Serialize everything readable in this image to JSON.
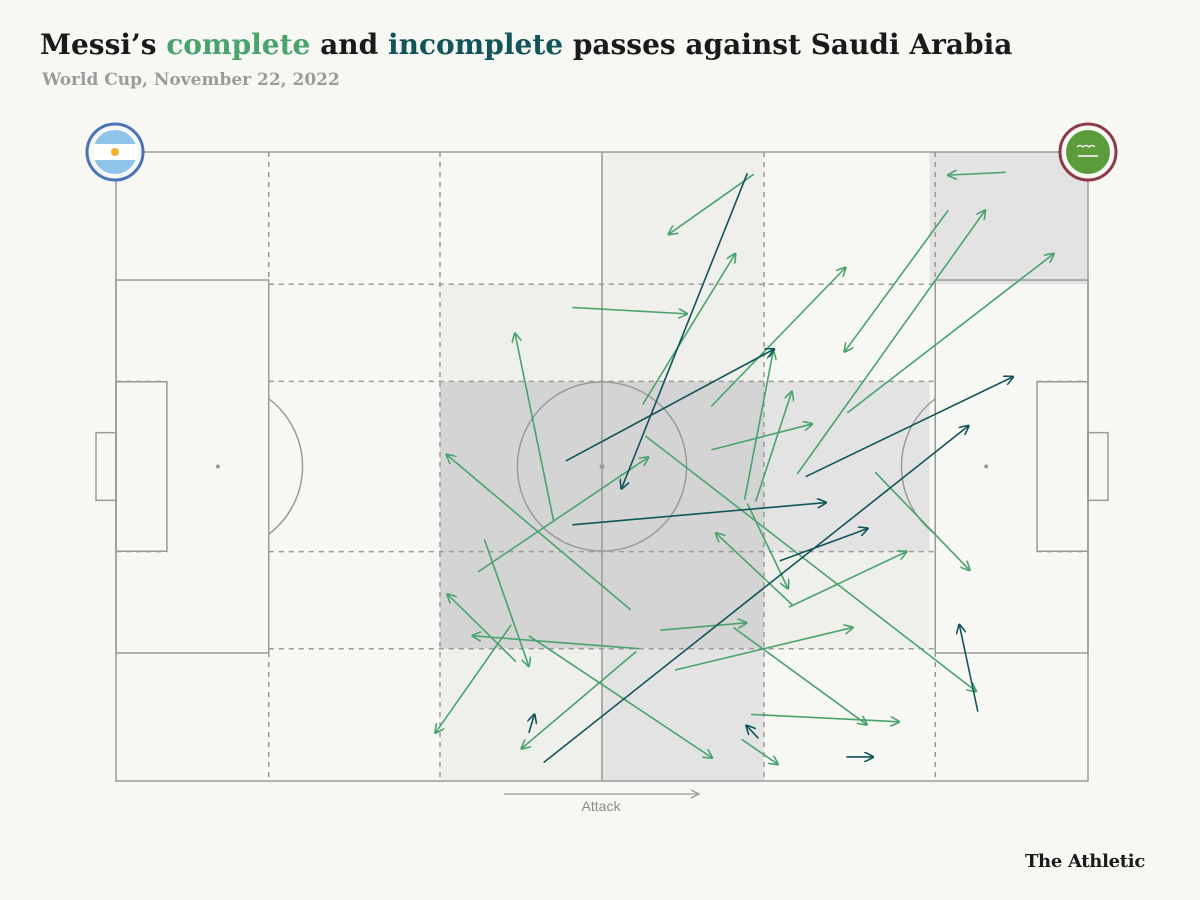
{
  "header": {
    "title_pre": "Messi’s ",
    "title_complete": "complete",
    "title_mid": " and ",
    "title_incomplete": "incomplete",
    "title_post": " passes against Saudi Arabia",
    "subtitle": "World Cup, November 22, 2022"
  },
  "attack_label": "Attack",
  "brand": "The Athletic",
  "teams": {
    "home": {
      "flag": "argentina-flag-icon",
      "ring_color": "#4a74b5"
    },
    "away": {
      "flag": "saudi-arabia-flag-icon",
      "ring_color": "#8b3a47"
    }
  },
  "colors": {
    "complete": "#4aa36d",
    "incomplete": "#11555a",
    "zone_dark": "#d4d4d4",
    "zone_mid": "#e3e3e3",
    "zone_light": "#efefeb",
    "lines": "#9a9a9a"
  },
  "chart_data": {
    "type": "pass-map",
    "pitch": {
      "length": 105,
      "width": 68
    },
    "attack_direction": "left-to-right",
    "zone_shading": [
      {
        "x0": 52.5,
        "x1": 70,
        "y0": 0,
        "y1": 14.3,
        "level": "light"
      },
      {
        "x0": 87.9,
        "x1": 105,
        "y0": 0,
        "y1": 14.3,
        "level": "mid"
      },
      {
        "x0": 35,
        "x1": 52.5,
        "y0": 14.3,
        "y1": 24.8,
        "level": "light"
      },
      {
        "x0": 52.5,
        "x1": 70,
        "y0": 14.3,
        "y1": 24.8,
        "level": "light"
      },
      {
        "x0": 35,
        "x1": 52.5,
        "y0": 24.8,
        "y1": 43.2,
        "level": "dark"
      },
      {
        "x0": 52.5,
        "x1": 70,
        "y0": 24.8,
        "y1": 43.2,
        "level": "dark"
      },
      {
        "x0": 70,
        "x1": 87.9,
        "y0": 24.8,
        "y1": 43.2,
        "level": "mid"
      },
      {
        "x0": 35,
        "x1": 52.5,
        "y0": 43.2,
        "y1": 53.7,
        "level": "dark"
      },
      {
        "x0": 52.5,
        "x1": 70,
        "y0": 43.2,
        "y1": 53.7,
        "level": "dark"
      },
      {
        "x0": 70,
        "x1": 87.9,
        "y0": 43.2,
        "y1": 53.7,
        "level": "light"
      },
      {
        "x0": 35,
        "x1": 52.5,
        "y0": 53.7,
        "y1": 68,
        "level": "light"
      },
      {
        "x0": 52.5,
        "x1": 70,
        "y0": 53.7,
        "y1": 68,
        "level": "mid"
      }
    ],
    "passes": [
      {
        "x0": 68.9,
        "y0": 2.4,
        "x1": 59.7,
        "y1": 8.9,
        "outcome": "complete"
      },
      {
        "x0": 96.1,
        "y0": 2.2,
        "x1": 89.9,
        "y1": 2.5,
        "outcome": "complete"
      },
      {
        "x0": 89.9,
        "y0": 6.3,
        "x1": 78.7,
        "y1": 21.6,
        "outcome": "complete"
      },
      {
        "x0": 73.6,
        "y0": 34.8,
        "x1": 93.9,
        "y1": 6.3,
        "outcome": "complete"
      },
      {
        "x0": 79.0,
        "y0": 28.2,
        "x1": 101.3,
        "y1": 11.0,
        "outcome": "complete"
      },
      {
        "x0": 49.3,
        "y0": 16.8,
        "x1": 61.7,
        "y1": 17.5,
        "outcome": "complete"
      },
      {
        "x0": 56.9,
        "y0": 27.3,
        "x1": 66.9,
        "y1": 11.0,
        "outcome": "complete"
      },
      {
        "x0": 67.9,
        "y0": 37.6,
        "x1": 71.0,
        "y1": 21.5,
        "outcome": "complete"
      },
      {
        "x0": 64.3,
        "y0": 27.5,
        "x1": 78.8,
        "y1": 12.5,
        "outcome": "complete"
      },
      {
        "x0": 69.1,
        "y0": 37.8,
        "x1": 73.0,
        "y1": 25.9,
        "outcome": "complete"
      },
      {
        "x0": 47.3,
        "y0": 40.0,
        "x1": 43.1,
        "y1": 19.6,
        "outcome": "complete"
      },
      {
        "x0": 39.1,
        "y0": 45.4,
        "x1": 57.5,
        "y1": 33.0,
        "outcome": "complete"
      },
      {
        "x0": 64.3,
        "y0": 32.2,
        "x1": 75.2,
        "y1": 29.4,
        "outcome": "complete"
      },
      {
        "x0": 55.6,
        "y0": 49.5,
        "x1": 35.7,
        "y1": 32.7,
        "outcome": "complete"
      },
      {
        "x0": 57.2,
        "y0": 30.7,
        "x1": 92.9,
        "y1": 58.3,
        "outcome": "complete"
      },
      {
        "x0": 68.2,
        "y0": 38.0,
        "x1": 72.6,
        "y1": 47.2,
        "outcome": "complete"
      },
      {
        "x0": 73.1,
        "y0": 49.0,
        "x1": 64.8,
        "y1": 41.2,
        "outcome": "complete"
      },
      {
        "x0": 72.7,
        "y0": 49.2,
        "x1": 85.4,
        "y1": 43.2,
        "outcome": "complete"
      },
      {
        "x0": 82.0,
        "y0": 34.6,
        "x1": 92.2,
        "y1": 45.2,
        "outcome": "complete"
      },
      {
        "x0": 39.8,
        "y0": 41.9,
        "x1": 44.6,
        "y1": 55.6,
        "outcome": "complete"
      },
      {
        "x0": 58.8,
        "y0": 51.7,
        "x1": 68.1,
        "y1": 50.9,
        "outcome": "complete"
      },
      {
        "x0": 56.5,
        "y0": 53.7,
        "x1": 38.5,
        "y1": 52.3,
        "outcome": "complete"
      },
      {
        "x0": 42.7,
        "y0": 51.1,
        "x1": 34.5,
        "y1": 62.8,
        "outcome": "complete"
      },
      {
        "x0": 43.2,
        "y0": 55.1,
        "x1": 35.8,
        "y1": 47.8,
        "outcome": "complete"
      },
      {
        "x0": 56.2,
        "y0": 54.0,
        "x1": 43.8,
        "y1": 64.5,
        "outcome": "complete"
      },
      {
        "x0": 44.6,
        "y0": 52.3,
        "x1": 64.4,
        "y1": 65.5,
        "outcome": "complete"
      },
      {
        "x0": 60.4,
        "y0": 56.0,
        "x1": 79.6,
        "y1": 51.4,
        "outcome": "complete"
      },
      {
        "x0": 66.7,
        "y0": 51.4,
        "x1": 81.1,
        "y1": 61.9,
        "outcome": "complete"
      },
      {
        "x0": 68.6,
        "y0": 60.8,
        "x1": 84.6,
        "y1": 61.6,
        "outcome": "complete"
      },
      {
        "x0": 67.6,
        "y0": 63.5,
        "x1": 71.5,
        "y1": 66.2,
        "outcome": "complete"
      },
      {
        "x0": 68.2,
        "y0": 2.3,
        "x1": 54.6,
        "y1": 36.4,
        "outcome": "incomplete"
      },
      {
        "x0": 48.6,
        "y0": 33.4,
        "x1": 71.1,
        "y1": 21.3,
        "outcome": "incomplete"
      },
      {
        "x0": 49.3,
        "y0": 40.3,
        "x1": 76.7,
        "y1": 37.9,
        "outcome": "incomplete"
      },
      {
        "x0": 74.5,
        "y0": 35.1,
        "x1": 96.9,
        "y1": 24.3,
        "outcome": "incomplete"
      },
      {
        "x0": 71.7,
        "y0": 44.2,
        "x1": 81.2,
        "y1": 40.7,
        "outcome": "incomplete"
      },
      {
        "x0": 46.2,
        "y0": 66.0,
        "x1": 92.1,
        "y1": 29.6,
        "outcome": "incomplete"
      },
      {
        "x0": 93.1,
        "y0": 60.5,
        "x1": 91.1,
        "y1": 51.1,
        "outcome": "incomplete"
      },
      {
        "x0": 44.6,
        "y0": 62.8,
        "x1": 45.2,
        "y1": 60.8,
        "outcome": "incomplete"
      },
      {
        "x0": 69.4,
        "y0": 63.4,
        "x1": 68.1,
        "y1": 62.0,
        "outcome": "incomplete"
      },
      {
        "x0": 78.9,
        "y0": 65.4,
        "x1": 81.8,
        "y1": 65.4,
        "outcome": "incomplete"
      }
    ]
  }
}
